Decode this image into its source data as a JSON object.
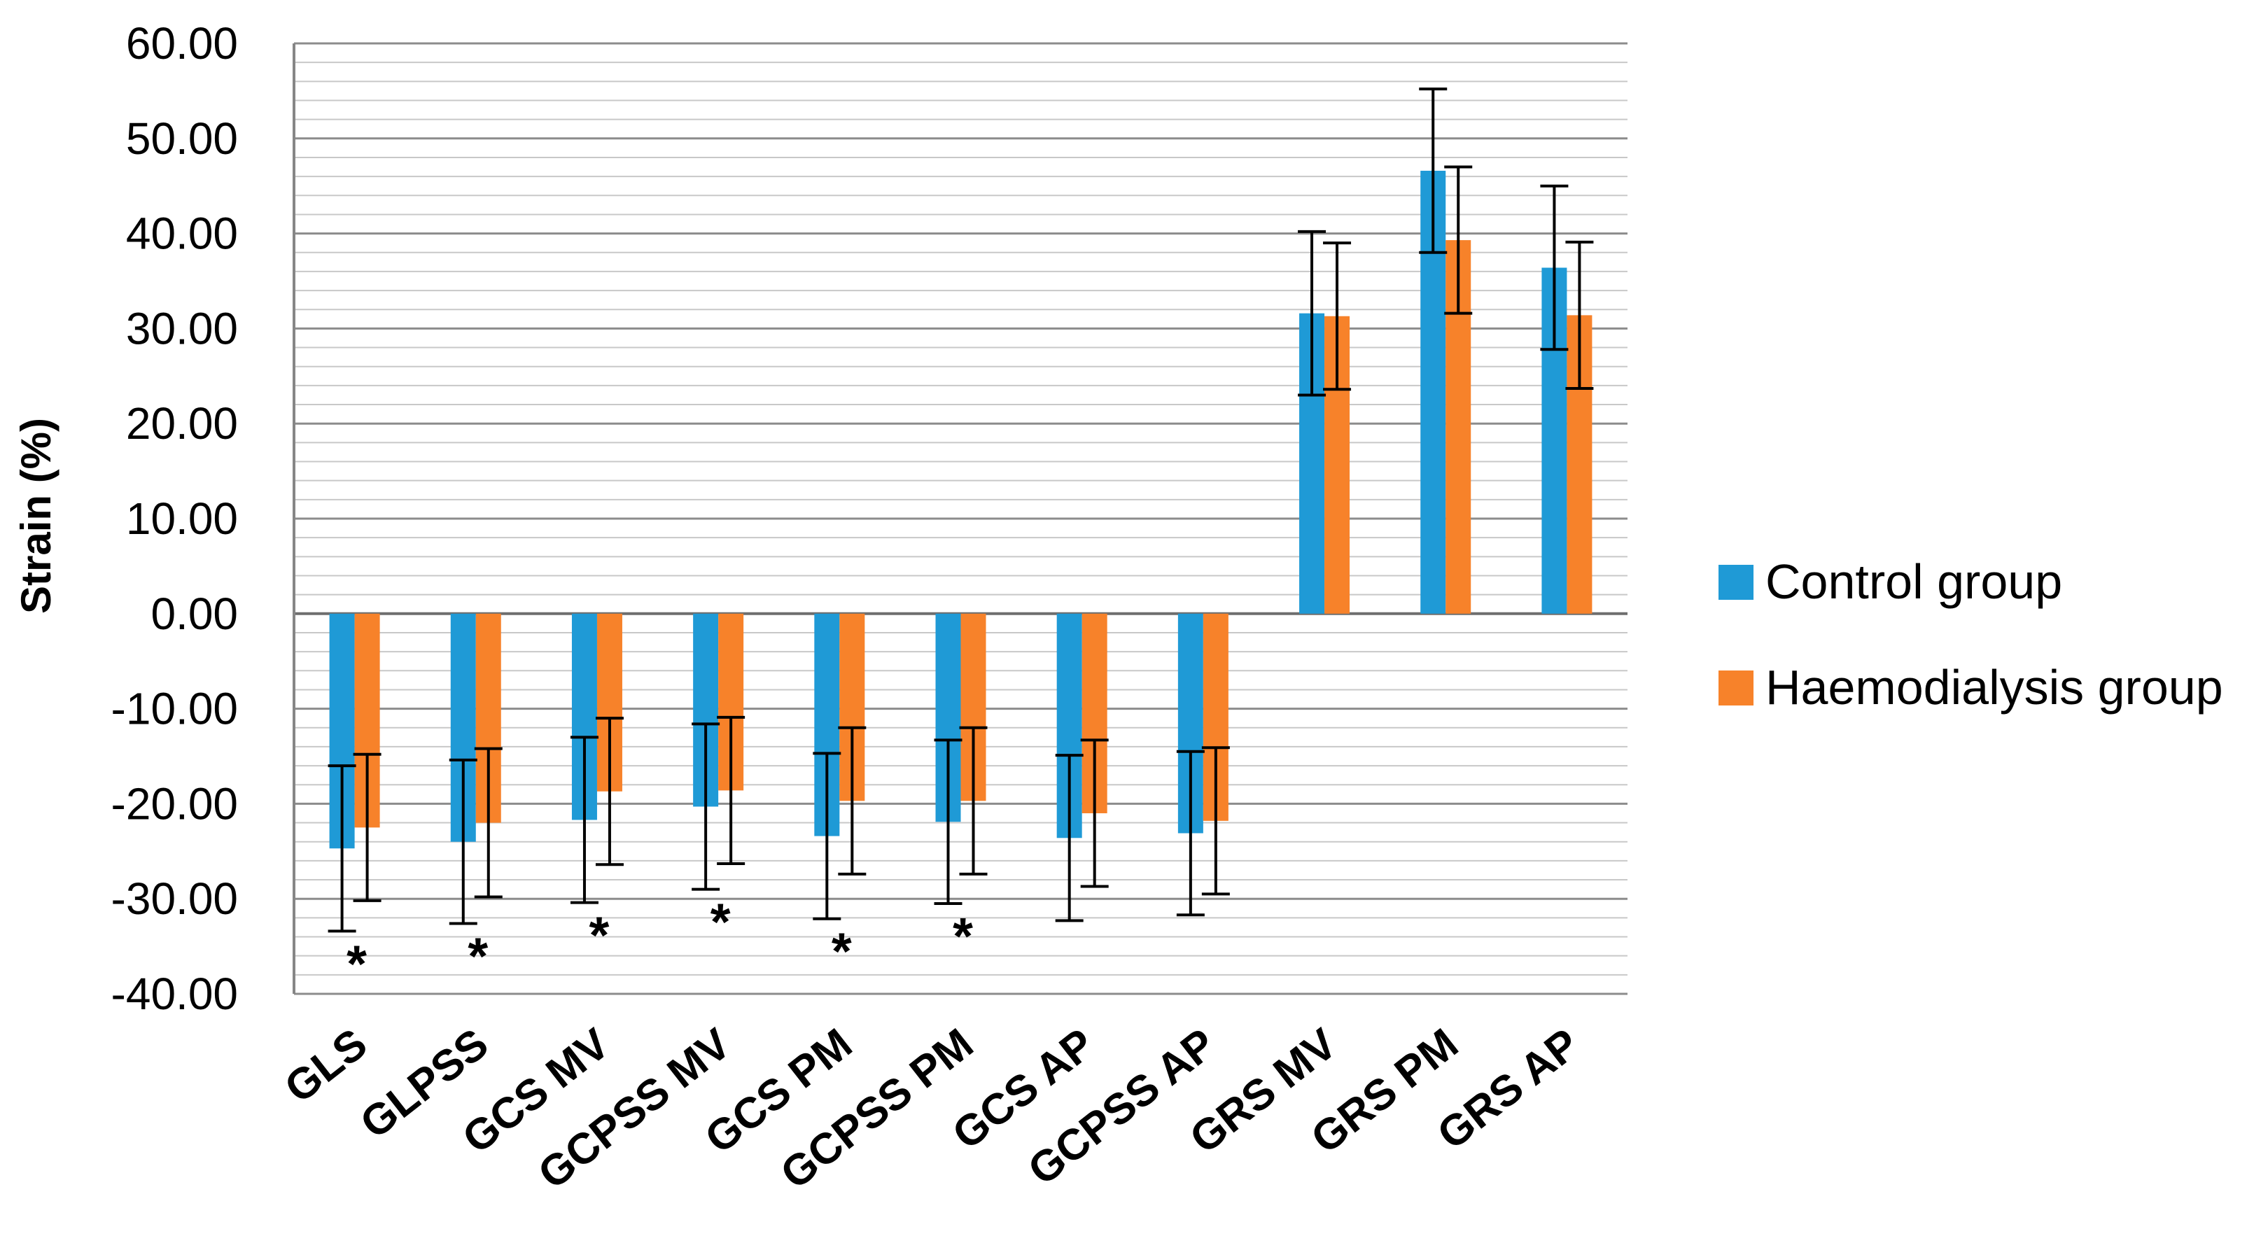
{
  "chart_data": {
    "type": "bar",
    "title": "",
    "xlabel": "",
    "ylabel": "Strain (%)",
    "ylim": [
      -40,
      60
    ],
    "ytick_step": 10,
    "ytick_labels": [
      "60.00",
      "50.00",
      "40.00",
      "30.00",
      "20.00",
      "10.00",
      "0.00",
      "-10.00",
      "-20.00",
      "-30.00",
      "-40.00"
    ],
    "minor_grid_step": 2,
    "grid": true,
    "legend_position": "right",
    "categories": [
      "GLS",
      "GLPSS",
      "GCS MV",
      "GCPSS MV",
      "GCS PM",
      "GCPSS PM",
      "GCS AP",
      "GCPSS AP",
      "GRS MV",
      "GRS PM",
      "GRS AP"
    ],
    "series": [
      {
        "name": "Control group",
        "color": "#1f9ad6",
        "values": [
          -24.7,
          -24.0,
          -21.7,
          -20.3,
          -23.4,
          -21.9,
          -23.6,
          -23.1,
          31.6,
          46.6,
          36.4
        ],
        "error": [
          8.7,
          8.6,
          8.7,
          8.7,
          8.7,
          8.6,
          8.7,
          8.6,
          8.6,
          8.6,
          8.6
        ]
      },
      {
        "name": "Haemodialysis group",
        "color": "#f7822a",
        "values": [
          -22.5,
          -22.0,
          -18.7,
          -18.6,
          -19.7,
          -19.7,
          -21.0,
          -21.8,
          31.3,
          39.3,
          31.4
        ],
        "error": [
          7.7,
          7.8,
          7.7,
          7.7,
          7.7,
          7.7,
          7.7,
          7.7,
          7.7,
          7.7,
          7.7
        ]
      }
    ],
    "annotations": [
      {
        "category": "GLS",
        "text": "*"
      },
      {
        "category": "GLPSS",
        "text": "*"
      },
      {
        "category": "GCS MV",
        "text": "*"
      },
      {
        "category": "GCPSS MV",
        "text": "*"
      },
      {
        "category": "GCS PM",
        "text": "*"
      },
      {
        "category": "GCPSS PM",
        "text": "*"
      }
    ]
  }
}
